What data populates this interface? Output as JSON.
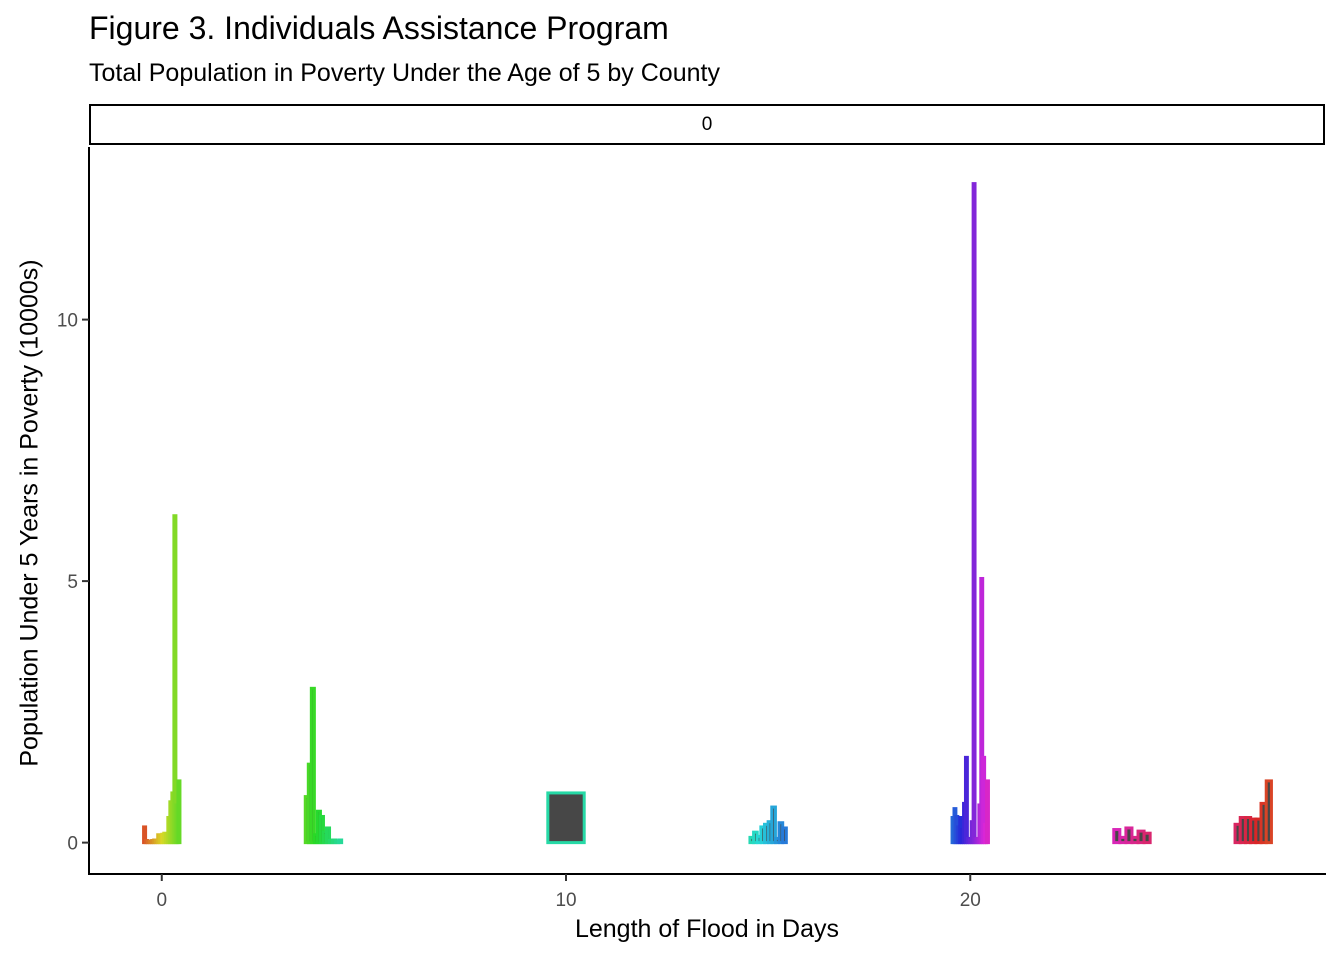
{
  "title": "Figure 3. Individuals Assistance Program",
  "subtitle": "Total Population in Poverty Under the Age of 5 by County",
  "chart_data": {
    "type": "bar",
    "facet_label": "0",
    "xlabel": "Length of Flood in Days",
    "ylabel": "Population Under 5 Years in Poverty (10000s)",
    "xlim": [
      -1.8,
      28.8
    ],
    "ylim": [
      -0.6,
      13.3
    ],
    "x_ticks": [
      0,
      10,
      20
    ],
    "y_ticks": [
      0,
      5,
      10
    ],
    "grid": false,
    "legend": "none",
    "groups": [
      {
        "x": 0,
        "values": [
          0.3,
          0.04,
          0.02,
          0.03,
          0.04,
          0.05,
          0.05,
          0.15,
          0.14,
          0.16,
          0.18,
          0.17,
          0.48,
          0.78,
          0.95,
          6.25,
          0.72,
          1.18
        ]
      },
      {
        "x": 4,
        "values": [
          0.88,
          1.5,
          2.95,
          0.15,
          0.6,
          0.5,
          0.2,
          0.28,
          0.04,
          0.05,
          0.03,
          0.05
        ]
      },
      {
        "x": 10,
        "values": [
          0.95
        ]
      },
      {
        "x": 15,
        "values": [
          0.1,
          0.2,
          0.12,
          0.3,
          0.35,
          0.4,
          0.68,
          0.08,
          0.38,
          0.28
        ]
      },
      {
        "x": 20,
        "values": [
          0.48,
          0.65,
          0.5,
          0.3,
          0.48,
          0.25,
          0.75,
          1.63,
          0.08,
          0.05,
          0.4,
          12.6,
          0.07,
          0.08,
          0.72,
          5.05,
          1.63,
          0.35,
          1.18
        ]
      },
      {
        "x": 24,
        "values": [
          0.25,
          0.1,
          0.28,
          0.1,
          0.22,
          0.18
        ]
      },
      {
        "x": 27,
        "values": [
          0.35,
          0.48,
          0.48,
          0.45,
          0.45,
          0.75,
          1.18
        ]
      }
    ]
  }
}
